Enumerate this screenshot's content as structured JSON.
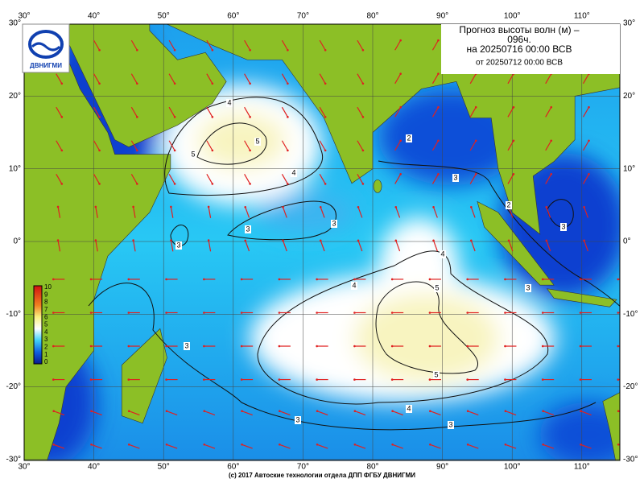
{
  "header": {
    "title_line1": "Прогноз высоты волн (м) –",
    "title_line2": "096ч.",
    "title_line3": "на 20250716 00:00 ВСВ",
    "title_line4": "от 20250712 00:00 ВСВ"
  },
  "logo": {
    "text": "ДВНИГМИ"
  },
  "axes": {
    "longitude_labels": [
      "30°",
      "40°",
      "50°",
      "60°",
      "70°",
      "80°",
      "90°",
      "100°",
      "110°"
    ],
    "latitude_labels": [
      "30°",
      "20°",
      "10°",
      "0°",
      "-10°",
      "-20°",
      "-30°"
    ]
  },
  "colorbar": {
    "labels": [
      "10",
      "9",
      "8",
      "7",
      "6",
      "5",
      "4",
      "3",
      "2",
      "1",
      "0"
    ]
  },
  "contour_labels": [
    "4",
    "5",
    "5",
    "4",
    "3",
    "3",
    "3",
    "4",
    "5",
    "5",
    "4",
    "3",
    "3",
    "2",
    "2",
    "3",
    "3",
    "4",
    "3",
    "3"
  ],
  "footer": "(c) 2017 Автоские технологии отдела ДПП ФГБУ ДВНИГМИ"
}
